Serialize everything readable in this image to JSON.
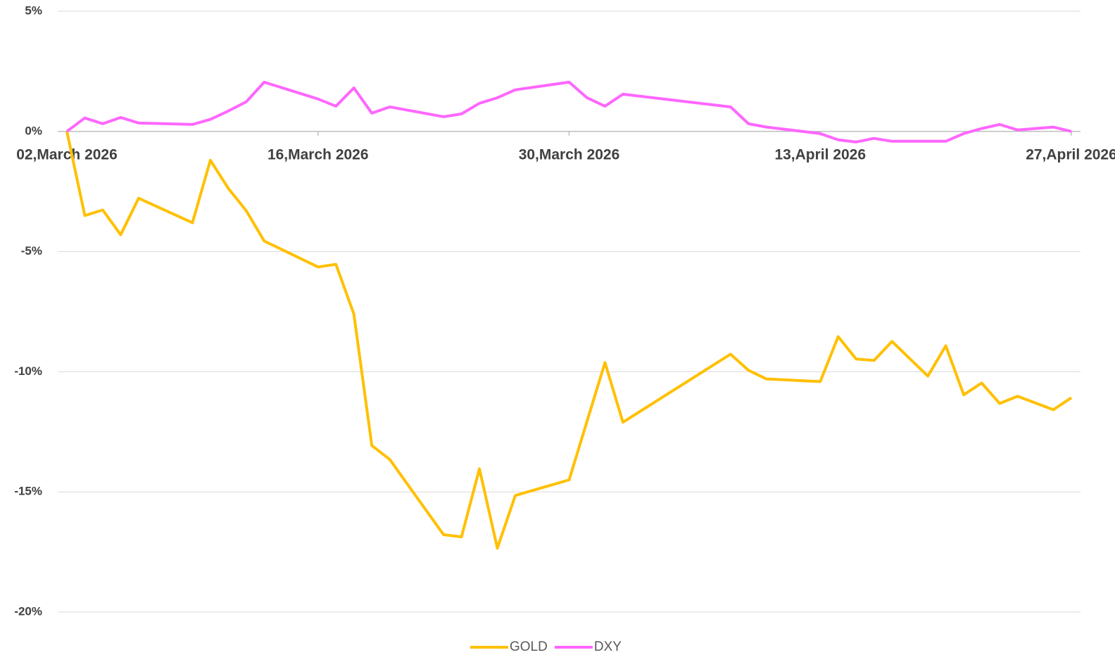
{
  "chart_data": {
    "type": "line",
    "x": [
      "2026-03-02",
      "2026-03-03",
      "2026-03-04",
      "2026-03-05",
      "2026-03-06",
      "2026-03-09",
      "2026-03-10",
      "2026-03-11",
      "2026-03-12",
      "2026-03-13",
      "2026-03-16",
      "2026-03-17",
      "2026-03-18",
      "2026-03-19",
      "2026-03-20",
      "2026-03-23",
      "2026-03-24",
      "2026-03-25",
      "2026-03-26",
      "2026-03-27",
      "2026-03-30",
      "2026-03-31",
      "2026-04-01",
      "2026-04-02",
      "2026-04-08",
      "2026-04-09",
      "2026-04-10",
      "2026-04-13",
      "2026-04-14",
      "2026-04-15",
      "2026-04-16",
      "2026-04-17",
      "2026-04-19",
      "2026-04-20",
      "2026-04-21",
      "2026-04-22",
      "2026-04-23",
      "2026-04-24",
      "2026-04-26",
      "2026-04-27"
    ],
    "series": [
      {
        "name": "GOLD",
        "color": "#ffc000",
        "values": [
          0,
          -3.5,
          -3.27,
          -4.3,
          -2.78,
          -3.8,
          -1.2,
          -2.37,
          -3.3,
          -4.56,
          -5.64,
          -5.53,
          -7.6,
          -13.07,
          -13.65,
          -16.78,
          -16.87,
          -14.04,
          -17.34,
          -15.15,
          -14.5,
          -12.06,
          -9.62,
          -12.1,
          -9.27,
          -9.94,
          -10.3,
          -10.41,
          -8.54,
          -9.47,
          -9.53,
          -8.74,
          -10.18,
          -8.92,
          -10.96,
          -10.47,
          -11.32,
          -11.02,
          -11.58,
          -11.08
        ]
      },
      {
        "name": "DXY",
        "color": "#ff66ff",
        "values": [
          0,
          0.56,
          0.32,
          0.58,
          0.35,
          0.29,
          0.5,
          0.85,
          1.23,
          2.05,
          1.35,
          1.05,
          1.81,
          0.76,
          1.02,
          0.61,
          0.73,
          1.17,
          1.4,
          1.73,
          2.05,
          1.4,
          1.05,
          1.55,
          1.02,
          0.32,
          0.18,
          -0.09,
          -0.35,
          -0.44,
          -0.29,
          -0.41,
          -0.41,
          -0.41,
          -0.09,
          0.12,
          0.29,
          0.06,
          0.18,
          0
        ]
      }
    ],
    "xlim": [
      "2026-03-02",
      "2026-04-27"
    ],
    "xticks": [
      {
        "value": "2026-03-02",
        "label": "02,March 2026"
      },
      {
        "value": "2026-03-16",
        "label": "16,March 2026"
      },
      {
        "value": "2026-03-30",
        "label": "30,March 2026"
      },
      {
        "value": "2026-04-13",
        "label": "13,April 2026"
      },
      {
        "value": "2026-04-27",
        "label": "27,April 2026"
      }
    ],
    "ylim": [
      -20,
      5
    ],
    "yticks": [
      {
        "value": -20,
        "label": "-20%"
      },
      {
        "value": -15,
        "label": "-15%"
      },
      {
        "value": -10,
        "label": "-10%"
      },
      {
        "value": -5,
        "label": "-5%"
      },
      {
        "value": 0,
        "label": "0%"
      },
      {
        "value": 5,
        "label": "5%"
      }
    ],
    "grid": true,
    "legend": "bottom"
  }
}
